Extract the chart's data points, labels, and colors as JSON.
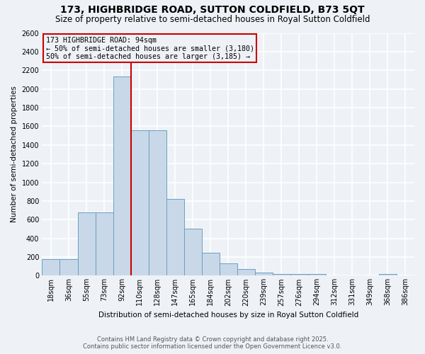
{
  "title": "173, HIGHBRIDGE ROAD, SUTTON COLDFIELD, B73 5QT",
  "subtitle": "Size of property relative to semi-detached houses in Royal Sutton Coldfield",
  "xlabel": "Distribution of semi-detached houses by size in Royal Sutton Coldfield",
  "ylabel": "Number of semi-detached properties",
  "footnote1": "Contains HM Land Registry data © Crown copyright and database right 2025.",
  "footnote2": "Contains public sector information licensed under the Open Government Licence v3.0.",
  "categories": [
    "18sqm",
    "36sqm",
    "55sqm",
    "73sqm",
    "92sqm",
    "110sqm",
    "128sqm",
    "147sqm",
    "165sqm",
    "184sqm",
    "202sqm",
    "220sqm",
    "239sqm",
    "257sqm",
    "276sqm",
    "294sqm",
    "312sqm",
    "331sqm",
    "349sqm",
    "368sqm",
    "386sqm"
  ],
  "values": [
    180,
    180,
    680,
    680,
    2130,
    1560,
    1560,
    820,
    500,
    245,
    130,
    70,
    35,
    20,
    20,
    15,
    5,
    0,
    0,
    15,
    0
  ],
  "bar_color": "#c8d8e8",
  "bar_edge_color": "#6a9fc0",
  "annotation_box_color": "#cc0000",
  "property_line_label": "173 HIGHBRIDGE ROAD: 94sqm",
  "smaller_text": "← 50% of semi-detached houses are smaller (3,180)",
  "larger_text": "50% of semi-detached houses are larger (3,185) →",
  "ylim": [
    0,
    2600
  ],
  "yticks": [
    0,
    200,
    400,
    600,
    800,
    1000,
    1200,
    1400,
    1600,
    1800,
    2000,
    2200,
    2400,
    2600
  ],
  "background_color": "#eef2f7",
  "grid_color": "#ffffff",
  "title_fontsize": 10,
  "subtitle_fontsize": 8.5,
  "axis_label_fontsize": 7.5,
  "tick_fontsize": 7,
  "footnote_fontsize": 6
}
